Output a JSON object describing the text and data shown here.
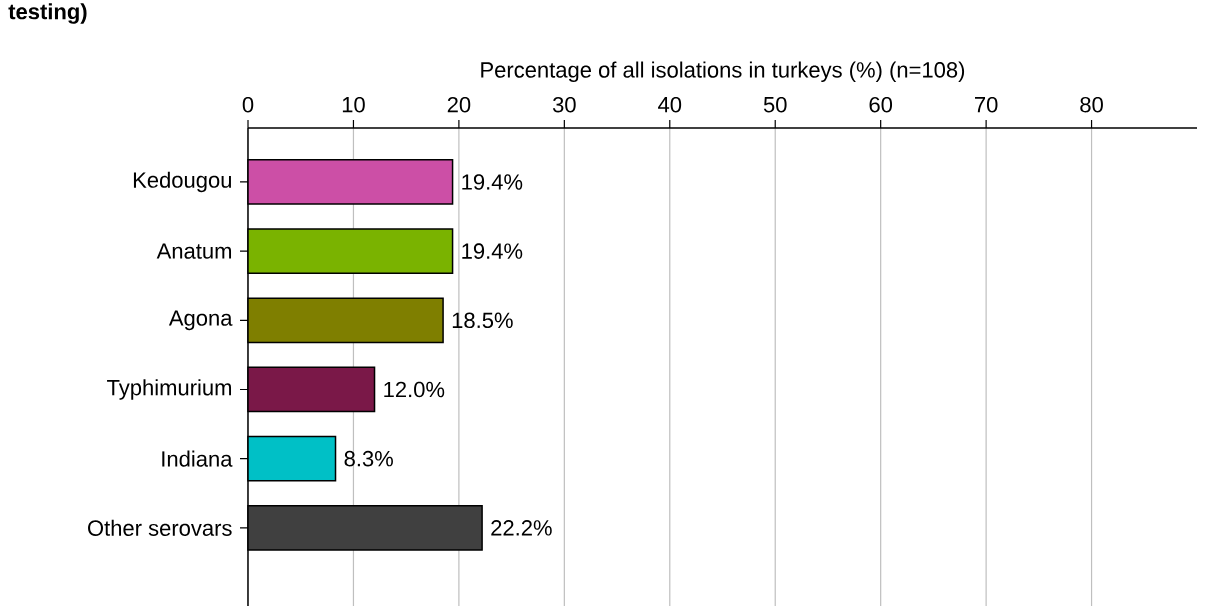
{
  "chart_data": {
    "type": "bar",
    "orientation": "horizontal",
    "title": "testing)",
    "xlabel": "Percentage of all isolations in turkeys (%) (n=108)",
    "categories": [
      "Kedougou",
      "Anatum",
      "Agona",
      "Typhimurium",
      "Indiana",
      "Other serovars"
    ],
    "values": [
      19.4,
      19.4,
      18.5,
      12.0,
      8.3,
      22.2
    ],
    "value_labels": [
      "19.4%",
      "19.4%",
      "18.5%",
      "12.0%",
      "8.3%",
      "22.2%"
    ],
    "colors": [
      "#cc4fa6",
      "#7ab300",
      "#7f7f00",
      "#7a1848",
      "#00c0c6",
      "#404040"
    ],
    "xlim": [
      0,
      90
    ],
    "xticks": [
      0,
      10,
      20,
      30,
      40,
      50,
      60,
      70,
      80
    ],
    "grid": "x"
  }
}
